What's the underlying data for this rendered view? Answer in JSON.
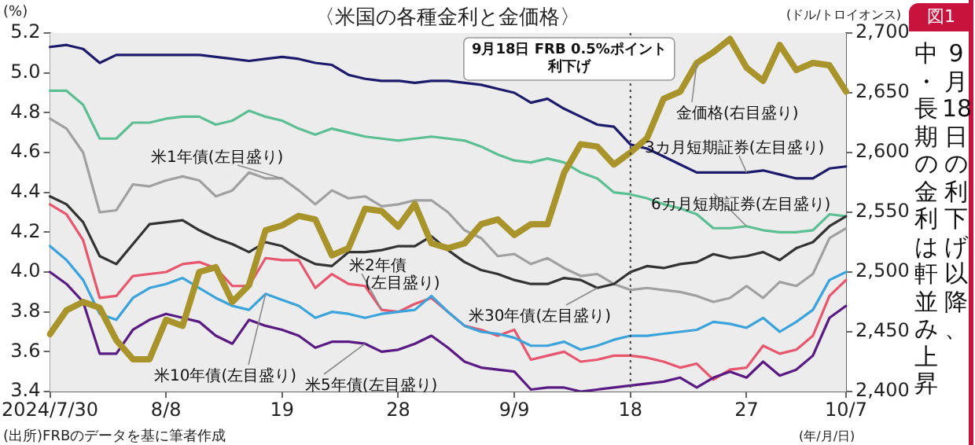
{
  "chart_data": {
    "type": "line",
    "title": "〈米国の各種金利と金価格〉",
    "ylabel": "(%)",
    "y2label": "(ドル/トロイオンス)",
    "xlabel": "(年/月/日)",
    "annotations": [
      "図1",
      "(出所)FRBのデータを基に筆者作成",
      "9月18日の利下げ以降、",
      "中・長期の金利は軒並み上昇"
    ],
    "categories": [
      "2024/7/30",
      null,
      null,
      null,
      null,
      null,
      null,
      "8/8",
      null,
      null,
      null,
      null,
      null,
      null,
      "19",
      null,
      null,
      null,
      null,
      null,
      null,
      "28",
      null,
      null,
      null,
      null,
      null,
      null,
      "9/9",
      null,
      null,
      null,
      null,
      null,
      null,
      "18",
      null,
      null,
      null,
      null,
      null,
      null,
      "27",
      null,
      null,
      null,
      null,
      null,
      "10/7"
    ],
    "series": [
      {
        "name": "3カ月短期証券(左目盛り)",
        "color": "#1c1a6b",
        "values": [
          5.13,
          5.14,
          5.12,
          5.05,
          5.09,
          5.09,
          5.09,
          5.09,
          5.09,
          5.09,
          5.08,
          5.07,
          5.06,
          5.07,
          5.08,
          5.07,
          5.05,
          5.04,
          4.99,
          4.97,
          4.96,
          4.96,
          4.95,
          4.96,
          4.96,
          4.95,
          4.94,
          4.92,
          4.9,
          4.85,
          4.87,
          4.82,
          4.78,
          4.74,
          4.73,
          4.64,
          4.62,
          4.58,
          4.54,
          4.5,
          4.5,
          4.5,
          4.5,
          4.51,
          4.49,
          4.47,
          4.47,
          4.52,
          4.53
        ]
      },
      {
        "name": "6カ月短期証券(左目盛り)",
        "color": "#5cbf94",
        "values": [
          4.91,
          4.91,
          4.84,
          4.67,
          4.67,
          4.75,
          4.75,
          4.77,
          4.78,
          4.78,
          4.74,
          4.76,
          4.81,
          4.78,
          4.76,
          4.72,
          4.69,
          4.72,
          4.7,
          4.68,
          4.67,
          4.66,
          4.67,
          4.68,
          4.67,
          4.66,
          4.63,
          4.59,
          4.56,
          4.55,
          4.57,
          4.55,
          4.5,
          4.47,
          4.4,
          4.39,
          4.37,
          4.34,
          4.32,
          4.29,
          4.22,
          4.22,
          4.23,
          4.21,
          4.2,
          4.2,
          4.21,
          4.29,
          4.28
        ]
      },
      {
        "name": "米1年債(左目盛り)",
        "color": "#a0a0a0",
        "values": [
          4.77,
          4.72,
          4.6,
          4.3,
          4.31,
          4.44,
          4.43,
          4.46,
          4.48,
          4.46,
          4.38,
          4.41,
          4.5,
          4.47,
          4.47,
          4.41,
          4.34,
          4.41,
          4.37,
          4.38,
          4.33,
          4.34,
          4.36,
          4.36,
          4.3,
          4.21,
          4.17,
          4.08,
          4.09,
          4.04,
          4.07,
          4.02,
          3.98,
          3.99,
          3.94,
          3.91,
          3.92,
          3.91,
          3.9,
          3.88,
          3.85,
          3.87,
          3.93,
          3.87,
          3.95,
          3.93,
          3.99,
          4.17,
          4.22
        ]
      },
      {
        "name": "米30年債(左目盛り)",
        "color": "#333333",
        "values": [
          4.38,
          4.34,
          4.25,
          4.08,
          4.04,
          4.14,
          4.24,
          4.25,
          4.26,
          4.21,
          4.17,
          4.14,
          4.1,
          4.15,
          4.13,
          4.08,
          4.04,
          4.03,
          4.1,
          4.1,
          4.11,
          4.13,
          4.13,
          4.18,
          4.11,
          4.05,
          4.01,
          3.99,
          3.96,
          3.94,
          3.94,
          3.97,
          3.96,
          3.92,
          3.94,
          4.0,
          4.03,
          4.02,
          4.04,
          4.05,
          4.09,
          4.07,
          4.08,
          4.1,
          4.06,
          4.12,
          4.15,
          4.23,
          4.28
        ]
      },
      {
        "name": "米2年債(左目盛り)",
        "color": "#e8566e",
        "values": [
          4.34,
          4.29,
          4.16,
          3.87,
          3.88,
          3.98,
          3.99,
          4.0,
          4.04,
          4.05,
          4.02,
          3.93,
          3.93,
          4.07,
          4.06,
          4.06,
          3.92,
          3.99,
          3.94,
          3.93,
          3.81,
          3.8,
          3.84,
          3.87,
          3.8,
          3.73,
          3.71,
          3.68,
          3.71,
          3.56,
          3.58,
          3.6,
          3.55,
          3.56,
          3.58,
          3.58,
          3.57,
          3.55,
          3.52,
          3.54,
          3.46,
          3.51,
          3.52,
          3.63,
          3.59,
          3.61,
          3.68,
          3.88,
          3.96
        ]
      },
      {
        "name": "米10年債(左目盛り)",
        "color": "#3aa3dc",
        "values": [
          4.13,
          4.06,
          3.96,
          3.79,
          3.76,
          3.87,
          3.92,
          3.94,
          3.97,
          3.92,
          3.87,
          3.83,
          3.81,
          3.89,
          3.86,
          3.83,
          3.77,
          3.8,
          3.79,
          3.77,
          3.79,
          3.8,
          3.81,
          3.88,
          3.8,
          3.73,
          3.7,
          3.69,
          3.67,
          3.63,
          3.63,
          3.65,
          3.61,
          3.63,
          3.66,
          3.68,
          3.68,
          3.69,
          3.7,
          3.71,
          3.75,
          3.74,
          3.72,
          3.77,
          3.7,
          3.75,
          3.81,
          3.96,
          4.0
        ]
      },
      {
        "name": "米5年債(左目盛り)",
        "color": "#5a1a84",
        "values": [
          4.0,
          3.94,
          3.85,
          3.59,
          3.59,
          3.71,
          3.76,
          3.79,
          3.77,
          3.75,
          3.68,
          3.64,
          3.76,
          3.73,
          3.71,
          3.68,
          3.62,
          3.65,
          3.65,
          3.64,
          3.6,
          3.61,
          3.64,
          3.68,
          3.62,
          3.55,
          3.52,
          3.51,
          3.5,
          3.41,
          3.42,
          3.42,
          3.4,
          3.41,
          3.42,
          3.43,
          3.44,
          3.45,
          3.47,
          3.42,
          3.47,
          3.5,
          3.47,
          3.55,
          3.48,
          3.51,
          3.58,
          3.77,
          3.83
        ]
      },
      {
        "name": "金価格(右目盛り)",
        "color": "#a8942a",
        "axis": "y2",
        "values": [
          2448,
          2468,
          2475,
          2470,
          2443,
          2427,
          2427,
          2460,
          2455,
          2500,
          2504,
          2475,
          2489,
          2535,
          2539,
          2547,
          2544,
          2514,
          2520,
          2553,
          2551,
          2538,
          2557,
          2524,
          2520,
          2524,
          2540,
          2544,
          2531,
          2540,
          2540,
          2583,
          2607,
          2605,
          2590,
          2600,
          2612,
          2645,
          2651,
          2675,
          2684,
          2695,
          2671,
          2660,
          2690,
          2669,
          2675,
          2673,
          2651
        ]
      }
    ],
    "ylim": [
      3.4,
      5.2
    ],
    "yticks": [
      3.4,
      3.6,
      3.8,
      {
        "value": 4,
        "label": "4.0"
      },
      4.2,
      4.4,
      4.6,
      4.8,
      {
        "value": 5,
        "label": "5.0"
      },
      5.2
    ],
    "y2lim": [
      2400,
      2700
    ],
    "y2ticks": [
      {
        "value": 2400,
        "label": "2,400"
      },
      {
        "value": 2450,
        "label": "2,450"
      },
      {
        "value": 2500,
        "label": "2,500"
      },
      {
        "value": 2550,
        "label": "2,550"
      },
      {
        "value": 2600,
        "label": "2,600"
      },
      {
        "value": 2650,
        "label": "2,650"
      },
      {
        "value": 2700,
        "label": "2,700"
      }
    ],
    "ref_lines": [
      {
        "axis": "x",
        "value": "18",
        "label": "9月18日 FRB 0.5%ポイント利下げ",
        "line_style": "dotted"
      }
    ],
    "grid": false,
    "legend": false,
    "marker": "none",
    "line_style": "solid"
  }
}
